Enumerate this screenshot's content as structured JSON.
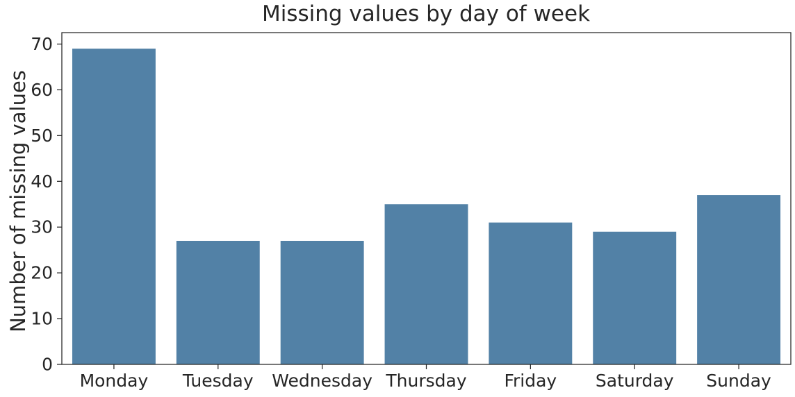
{
  "chart_data": {
    "type": "bar",
    "title": "Missing values by day of week",
    "xlabel": "",
    "ylabel": "Number of missing values",
    "categories": [
      "Monday",
      "Tuesday",
      "Wednesday",
      "Thursday",
      "Friday",
      "Saturday",
      "Sunday"
    ],
    "values": [
      69,
      27,
      27,
      35,
      31,
      29,
      37
    ],
    "ylim": [
      0,
      72.5
    ],
    "yticks": [
      0,
      10,
      20,
      30,
      40,
      50,
      60,
      70
    ],
    "grid": false,
    "legend": "none",
    "colors": {
      "bar": "#5281a6",
      "axis": "#262626",
      "text": "#262626"
    }
  }
}
